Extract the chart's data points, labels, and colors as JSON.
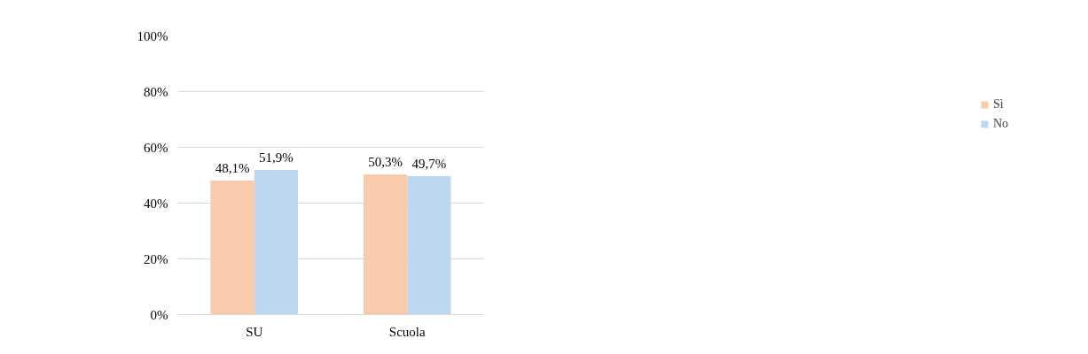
{
  "chart_data": {
    "type": "bar",
    "categories": [
      "SU",
      "Scuola"
    ],
    "series": [
      {
        "name": "Sì",
        "color": "#f8cbad",
        "values": [
          48.1,
          50.3
        ],
        "value_labels": [
          "48,1%",
          "50,3%"
        ]
      },
      {
        "name": "No",
        "color": "#bdd7ee",
        "values": [
          51.9,
          49.7
        ],
        "value_labels": [
          "51,9%",
          "49,7%"
        ]
      }
    ],
    "ylim": [
      0,
      100
    ],
    "yticks": [
      {
        "value": 0,
        "label": "0%"
      },
      {
        "value": 20,
        "label": "20%"
      },
      {
        "value": 40,
        "label": "40%"
      },
      {
        "value": 60,
        "label": "60%"
      },
      {
        "value": 80,
        "label": "80%"
      },
      {
        "value": 100,
        "label": "100%"
      }
    ],
    "grid": "y",
    "legend": "right"
  }
}
